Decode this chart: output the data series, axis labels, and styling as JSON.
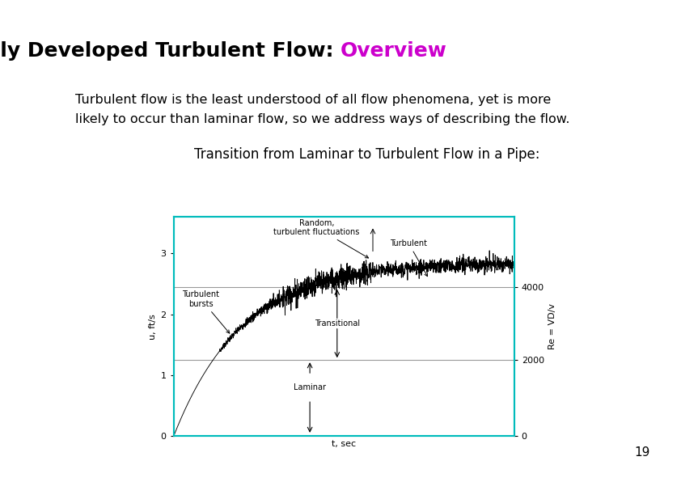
{
  "title_black": "Fully Developed Turbulent Flow: ",
  "title_magenta": "Overview",
  "body_text_line1": "Turbulent flow is the least understood of all flow phenomena, yet is more",
  "body_text_line2": "likely to occur than laminar flow, so we address ways of describing the flow.",
  "subtitle": "Transition from Laminar to Turbulent Flow in a Pipe:",
  "page_number": "19",
  "background_color": "#ffffff",
  "title_fontsize": 18,
  "body_fontsize": 11.5,
  "subtitle_fontsize": 12,
  "page_fontsize": 11,
  "graph_border_color": "#00bbbb",
  "graph_line_color": "#000000",
  "horizontal_line_color": "#999999",
  "annotation_fontsize": 7,
  "ylabel_text": "u, ft/s",
  "xlabel_text": "t, sec",
  "right_ylabel_text": "Re = VD/v",
  "ann_random": "Random,\nturbulent fluctuations",
  "ann_turbulent": "Turbulent",
  "ann_bursts": "Turbulent\nbursts",
  "ann_transitional": "Transitional",
  "ann_laminar": "Laminar",
  "yticks": [
    0,
    1,
    2,
    3
  ],
  "re_line1": 2.45,
  "re_line2": 1.25,
  "ylim_max": 3.6,
  "xlim_max": 10.0
}
